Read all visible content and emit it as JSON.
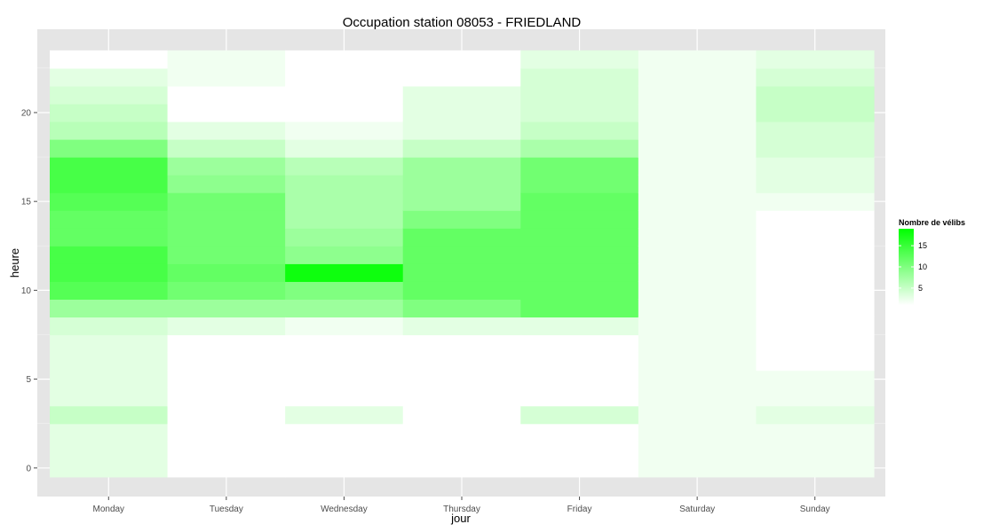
{
  "chart_data": {
    "type": "heatmap",
    "title": "Occupation station 08053 - FRIEDLAND",
    "xlabel": "jour",
    "ylabel": "heure",
    "x_categories": [
      "Monday",
      "Tuesday",
      "Wednesday",
      "Thursday",
      "Friday",
      "Saturday",
      "Sunday"
    ],
    "y_hours": [
      0,
      1,
      2,
      3,
      4,
      5,
      6,
      7,
      8,
      9,
      10,
      11,
      12,
      13,
      14,
      15,
      16,
      17,
      18,
      19,
      20,
      21,
      22,
      23
    ],
    "y_ticks": [
      0,
      5,
      10,
      15,
      20
    ],
    "y_tick_labels": [
      "0",
      "5",
      "10",
      "15",
      "20"
    ],
    "ylim": [
      -0.5,
      23.5
    ],
    "grid": true,
    "legend": {
      "title": "Nombre de vélibs",
      "position": "right",
      "ticks": [
        5,
        10,
        15
      ],
      "tick_labels": [
        "5",
        "10",
        "15"
      ],
      "range": [
        1,
        19
      ],
      "color_low": "#ffffff",
      "color_high": "#00ff00"
    },
    "values": {
      "Monday": [
        3,
        3,
        3,
        5,
        3,
        3,
        3,
        3,
        4,
        8,
        13,
        14,
        14,
        12,
        12,
        13,
        14,
        14,
        10,
        6,
        5,
        4,
        3,
        1
      ],
      "Tuesday": [
        1,
        1,
        1,
        1,
        1,
        1,
        1,
        1,
        3,
        8,
        11,
        12,
        11,
        11,
        11,
        11,
        9,
        8,
        5,
        3,
        1,
        1,
        2,
        2
      ],
      "Wednesday": [
        1,
        1,
        1,
        3,
        0,
        1,
        1,
        1,
        2,
        8,
        10,
        18,
        9,
        8,
        7,
        7,
        7,
        6,
        3,
        2,
        0,
        0,
        1,
        1
      ],
      "Thursday": [
        1,
        1,
        1,
        1,
        1,
        1,
        1,
        1,
        3,
        10,
        12,
        12,
        12,
        12,
        10,
        8,
        8,
        8,
        5,
        3,
        3,
        3,
        1,
        1
      ],
      "Friday": [
        1,
        1,
        1,
        4,
        1,
        1,
        1,
        1,
        3,
        12,
        12,
        12,
        12,
        12,
        12,
        12,
        11,
        11,
        7,
        5,
        4,
        4,
        4,
        3
      ],
      "Saturday": [
        2,
        2,
        2,
        2,
        2,
        2,
        2,
        2,
        2,
        2,
        2,
        2,
        2,
        2,
        2,
        2,
        2,
        2,
        2,
        2,
        2,
        2,
        2,
        2
      ],
      "Sunday": [
        2,
        2,
        2,
        3,
        2,
        2,
        1,
        1,
        1,
        1,
        1,
        0,
        0,
        1,
        1,
        2,
        3,
        3,
        4,
        4,
        5,
        5,
        4,
        3
      ]
    }
  }
}
